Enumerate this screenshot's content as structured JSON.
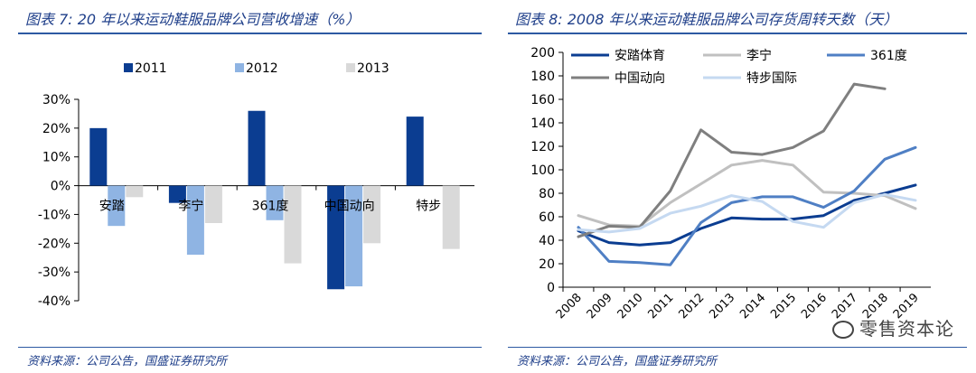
{
  "left_panel": {
    "title": "图表 7:  20 年以来运动鞋服品牌公司营收增速（%）",
    "source": "资料来源：公司公告，国盛证券研究所"
  },
  "right_panel": {
    "title": "图表 8:  2008 年以来运动鞋服品牌公司存货周转天数（天）",
    "source": "资料来源：公司公告，国盛证券研究所"
  },
  "watermark": {
    "text": "零售资本论"
  },
  "chart_data": [
    {
      "type": "bar",
      "title": "20 年以来运动鞋服品牌公司营收增速（%）",
      "categories": [
        "安踏",
        "李宁",
        "361度",
        "中国动向",
        "特步"
      ],
      "series": [
        {
          "name": "2011",
          "color": "#0b3d91",
          "values": [
            20,
            -6,
            26,
            -36,
            24
          ]
        },
        {
          "name": "2012",
          "color": "#8fb4e3",
          "values": [
            -14,
            -24,
            -12,
            -35,
            0
          ]
        },
        {
          "name": "2013",
          "color": "#d9d9d9",
          "values": [
            -4,
            -13,
            -27,
            -20,
            -22
          ]
        }
      ],
      "ylim": [
        -40,
        30
      ],
      "yticks": [
        -40,
        -30,
        -20,
        -10,
        0,
        10,
        20,
        30
      ],
      "ytick_labels": [
        "-40%",
        "-30%",
        "-20%",
        "-10%",
        "0%",
        "10%",
        "20%",
        "30%"
      ],
      "legend_position": "top"
    },
    {
      "type": "line",
      "title": "2008 年以来运动鞋服品牌公司存货周转天数（天）",
      "x": [
        "2008",
        "2009",
        "2010",
        "2011",
        "2012",
        "2013",
        "2014",
        "2015",
        "2016",
        "2017",
        "2018",
        "2019"
      ],
      "series": [
        {
          "name": "安踏体育",
          "color": "#0b3d91",
          "values": [
            48,
            38,
            36,
            38,
            50,
            59,
            58,
            58,
            61,
            74,
            80,
            87
          ]
        },
        {
          "name": "李宁",
          "color": "#c0c0c0",
          "values": [
            61,
            53,
            52,
            72,
            88,
            104,
            108,
            104,
            81,
            80,
            78,
            67
          ]
        },
        {
          "name": "361度",
          "color": "#4f7fc4",
          "values": [
            51,
            22,
            21,
            19,
            55,
            72,
            77,
            77,
            68,
            82,
            109,
            119
          ]
        },
        {
          "name": "中国动向",
          "color": "#7f7f7f",
          "values": [
            43,
            52,
            51,
            82,
            134,
            115,
            113,
            119,
            133,
            173,
            169,
            null
          ]
        },
        {
          "name": "特步国际",
          "color": "#c5d9f1",
          "values": [
            49,
            47,
            50,
            63,
            69,
            78,
            73,
            56,
            51,
            72,
            79,
            74
          ]
        }
      ],
      "ylim": [
        0,
        200
      ],
      "yticks": [
        0,
        20,
        40,
        60,
        80,
        100,
        120,
        140,
        160,
        180,
        200
      ],
      "legend_position": "top-left"
    }
  ]
}
